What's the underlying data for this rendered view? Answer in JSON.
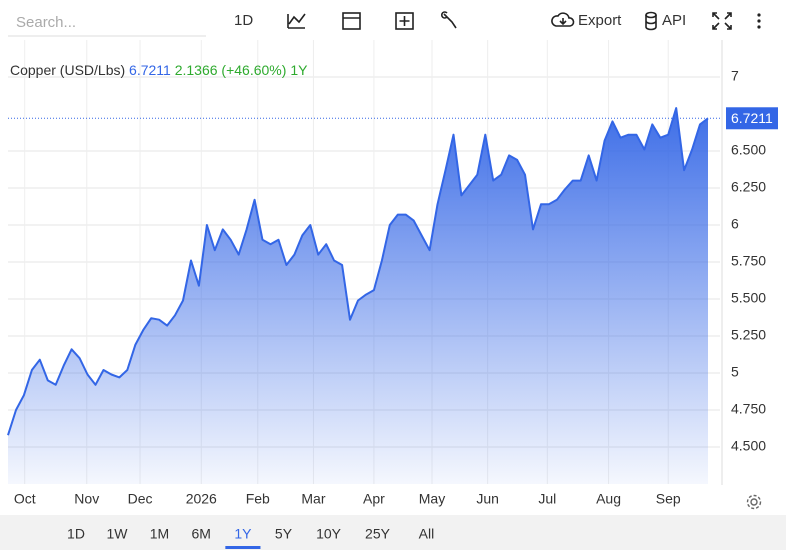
{
  "ui": {
    "search_placeholder": "Search...",
    "interval": "1D",
    "export": "Export",
    "api": "API",
    "ranges": [
      "1D",
      "1W",
      "1M",
      "6M",
      "1Y",
      "5Y",
      "10Y",
      "25Y",
      "All"
    ],
    "selected_range": "1Y"
  },
  "chart_data": {
    "type": "area",
    "legend_name": "Copper (USD/Lbs)",
    "change_text": "2.1366 (+46.60%)",
    "period": "1Y",
    "series": [
      {
        "name": "Copper",
        "color": "#3366e6",
        "values": [
          4.58,
          4.75,
          4.85,
          5.02,
          5.09,
          4.95,
          4.92,
          5.05,
          5.16,
          5.1,
          4.99,
          4.92,
          5.02,
          4.99,
          4.97,
          5.02,
          5.19,
          5.29,
          5.37,
          5.36,
          5.32,
          5.39,
          5.49,
          5.76,
          5.59,
          6.0,
          5.83,
          5.97,
          5.9,
          5.8,
          5.97,
          6.17,
          5.9,
          5.87,
          5.9,
          5.73,
          5.8,
          5.93,
          6.0,
          5.8,
          5.87,
          5.76,
          5.73,
          5.36,
          5.49,
          5.53,
          5.56,
          5.76,
          6.0,
          6.07,
          6.07,
          6.03,
          5.93,
          5.83,
          6.14,
          6.37,
          6.61,
          6.2,
          6.27,
          6.34,
          6.61,
          6.3,
          6.34,
          6.47,
          6.44,
          6.34,
          5.97,
          6.14,
          6.14,
          6.17,
          6.24,
          6.3,
          6.3,
          6.47,
          6.3,
          6.57,
          6.7,
          6.59,
          6.61,
          6.61,
          6.51,
          6.68,
          6.59,
          6.61,
          6.79,
          6.37,
          6.51,
          6.68,
          6.7211
        ]
      }
    ],
    "xlim": [
      0,
      88
    ],
    "xticks": [
      {
        "value": 2.1,
        "label": "Oct"
      },
      {
        "value": 9.9,
        "label": "Nov"
      },
      {
        "value": 16.6,
        "label": "Dec"
      },
      {
        "value": 24.3,
        "label": "2026"
      },
      {
        "value": 31.4,
        "label": "Feb"
      },
      {
        "value": 38.4,
        "label": "Mar"
      },
      {
        "value": 46,
        "label": "Apr"
      },
      {
        "value": 53.3,
        "label": "May"
      },
      {
        "value": 60.3,
        "label": "Jun"
      },
      {
        "value": 67.8,
        "label": "Jul"
      },
      {
        "value": 75.5,
        "label": "Aug"
      },
      {
        "value": 83,
        "label": "Sep"
      }
    ],
    "ylim": [
      4.25,
      7.25
    ],
    "yticks": [
      {
        "value": 4.5,
        "label": "4.500"
      },
      {
        "value": 4.75,
        "label": "4.750"
      },
      5,
      {
        "value": 5.25,
        "label": "5.250"
      },
      {
        "value": 5.5,
        "label": "5.500"
      },
      {
        "value": 5.75,
        "label": "5.750"
      },
      6,
      {
        "value": 6.25,
        "label": "6.250"
      },
      {
        "value": 6.5,
        "label": "6.500"
      },
      7
    ],
    "grid": true
  }
}
